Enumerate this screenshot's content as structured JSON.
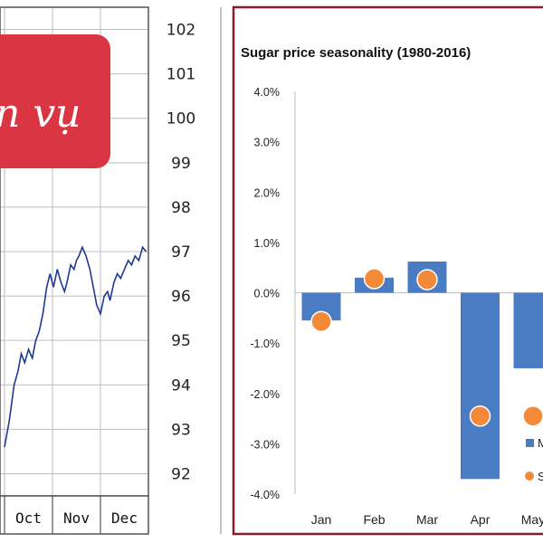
{
  "banner": {
    "text": "n vụ",
    "color": "#d93543"
  },
  "chart_data": [
    {
      "type": "line",
      "title": "",
      "xlabel": "",
      "ylabel": "",
      "x_tick_labels": [
        "Oct",
        "Nov",
        "Dec"
      ],
      "y_ticks": [
        92,
        93,
        94,
        95,
        96,
        97,
        98,
        99,
        100,
        101,
        102
      ],
      "ylim": [
        91.5,
        102.5
      ],
      "grid": true,
      "line_color": "#1f3a93",
      "series": [
        {
          "name": "",
          "x": [
            0.0,
            0.1,
            0.2,
            0.28,
            0.35,
            0.42,
            0.5,
            0.58,
            0.65,
            0.72,
            0.8,
            0.88,
            0.95,
            1.02,
            1.1,
            1.18,
            1.25,
            1.3,
            1.38,
            1.45,
            1.5,
            1.55,
            1.62,
            1.7,
            1.78,
            1.85,
            1.92,
            2.0,
            2.08,
            2.15,
            2.2,
            2.28,
            2.35,
            2.42,
            2.5,
            2.58,
            2.65,
            2.72,
            2.8,
            2.88,
            2.95
          ],
          "values": [
            92.6,
            93.2,
            94.0,
            94.3,
            94.7,
            94.5,
            94.8,
            94.6,
            95.0,
            95.2,
            95.6,
            96.2,
            96.5,
            96.2,
            96.6,
            96.3,
            96.1,
            96.3,
            96.7,
            96.6,
            96.8,
            96.9,
            97.1,
            96.9,
            96.6,
            96.2,
            95.8,
            95.6,
            96.0,
            96.1,
            95.9,
            96.3,
            96.5,
            96.4,
            96.6,
            96.8,
            96.7,
            96.9,
            96.8,
            97.1,
            97.0
          ]
        }
      ]
    },
    {
      "type": "bar",
      "title": "Sugar price seasonality (1980-2016)",
      "xlabel": "",
      "ylabel": "",
      "categories": [
        "Jan",
        "Feb",
        "Mar",
        "Apr",
        "May"
      ],
      "y_tick_labels": [
        "4.0%",
        "3.0%",
        "2.0%",
        "1.0%",
        "0.0%",
        "-1.0%",
        "-2.0%",
        "-3.0%",
        "-4.0%"
      ],
      "ylim": [
        -4.0,
        4.0
      ],
      "grid": false,
      "bar_color": "#4a7cc4",
      "marker_color": "#f28a3a",
      "series": [
        {
          "name": "",
          "values": [
            -0.55,
            0.3,
            0.62,
            -3.7,
            -1.5
          ]
        },
        {
          "name": "",
          "values": [
            -0.57,
            0.28,
            0.26,
            -2.45,
            -2.45
          ]
        }
      ],
      "legend_position": "bottom-right",
      "legend_fragments": [
        "M",
        "S"
      ]
    }
  ]
}
